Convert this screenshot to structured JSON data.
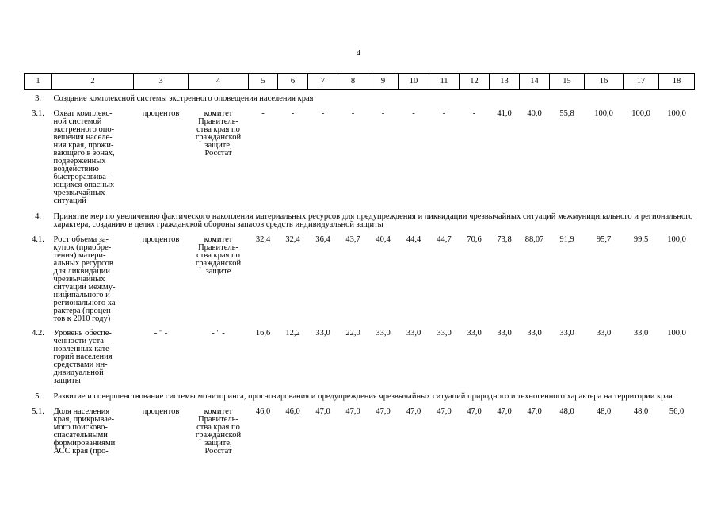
{
  "page_number": "4",
  "table": {
    "header": [
      "1",
      "2",
      "3",
      "4",
      "5",
      "6",
      "7",
      "8",
      "9",
      "10",
      "11",
      "12",
      "13",
      "14",
      "15",
      "16",
      "17",
      "18"
    ],
    "sections": [
      {
        "number": "3.",
        "title": "Создание комплексной системы экстренного оповещения населения края",
        "rows": [
          {
            "number": "3.1.",
            "indicator": [
              "Охват комплекс-",
              "ной системой",
              "экстренного опо-",
              "вещения населе-",
              "ния края, прожи-",
              "вающего в зонах,",
              "подверженных",
              "воздействию",
              "быстроразвива-",
              "ющихся опасных",
              "чрезвычайных",
              "ситуаций"
            ],
            "unit": "процентов",
            "executor": [
              "комитет",
              "Правитель-",
              "ства края по",
              "гражданской",
              "защите,",
              "Росстат"
            ],
            "values": [
              "-",
              "-",
              "-",
              "-",
              "-",
              "-",
              "-",
              "-",
              "41,0",
              "40,0",
              "55,8",
              "100,0",
              "100,0",
              "100,0"
            ]
          }
        ]
      },
      {
        "number": "4.",
        "title": "Принятие мер по увеличению фактического накопления материальных ресурсов для предупреждения и ликвидации чрезвычайных ситуаций межмуниципального и регионального характера, созданию в целях гражданской обороны запасов средств индивидуальной защиты",
        "rows": [
          {
            "number": "4.1.",
            "indicator": [
              "Рост объема за-",
              "купок (приобре-",
              "тения) матери-",
              "альных ресурсов",
              "для ликвидации",
              "чрезвычайных",
              "ситуаций межму-",
              "ниципального и",
              "регионального ха-",
              "рактера (процен-",
              "тов к 2010 году)"
            ],
            "unit": "процентов",
            "executor": [
              "комитет",
              "Правитель-",
              "ства края по",
              "гражданской",
              "защите"
            ],
            "values": [
              "32,4",
              "32,4",
              "36,4",
              "43,7",
              "40,4",
              "44,4",
              "44,7",
              "70,6",
              "73,8",
              "88,07",
              "91,9",
              "95,7",
              "99,5",
              "100,0"
            ]
          },
          {
            "number": "4.2.",
            "indicator": [
              "Уровень обеспе-",
              "ченности уста-",
              "новленных кате-",
              "горий населения",
              "средствами ин-",
              "дивидуальной",
              "защиты"
            ],
            "unit": "- \" -",
            "executor": [
              "- \" -"
            ],
            "values": [
              "16,6",
              "12,2",
              "33,0",
              "22,0",
              "33,0",
              "33,0",
              "33,0",
              "33,0",
              "33,0",
              "33,0",
              "33,0",
              "33,0",
              "33,0",
              "100,0"
            ]
          }
        ]
      },
      {
        "number": "5.",
        "title": "Развитие и совершенствование системы мониторинга, прогнозирования и предупреждения чрезвычайных ситуаций природного и техногенного характера на территории края",
        "rows": [
          {
            "number": "5.1.",
            "indicator": [
              "Доля населения",
              "края, прикрывае-",
              "мого поисково-",
              "спасательными",
              "формированиями",
              "АСС края (про-"
            ],
            "unit": "процентов",
            "executor": [
              "комитет",
              "Правитель-",
              "ства края по",
              "гражданской",
              "защите,",
              "Росстат"
            ],
            "values": [
              "46,0",
              "46,0",
              "47,0",
              "47,0",
              "47,0",
              "47,0",
              "47,0",
              "47,0",
              "47,0",
              "47,0",
              "48,0",
              "48,0",
              "48,0",
              "56,0"
            ]
          }
        ]
      }
    ]
  }
}
